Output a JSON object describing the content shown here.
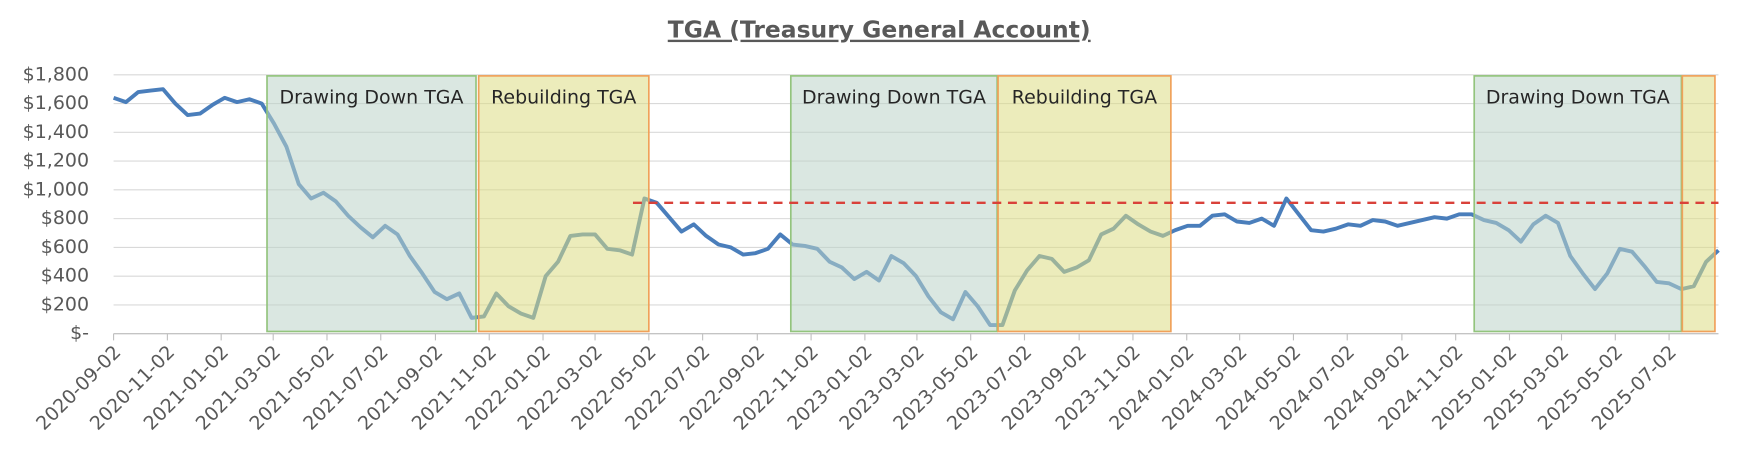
{
  "chart_data": {
    "type": "line",
    "title": "TGA (Treasury General Account)",
    "color": "#4a7ebb",
    "x": [
      "2020-09-02",
      "2020-09-16",
      "2020-09-30",
      "2020-10-14",
      "2020-10-28",
      "2020-11-11",
      "2020-11-25",
      "2020-12-09",
      "2020-12-23",
      "2021-01-06",
      "2021-01-20",
      "2021-02-03",
      "2021-02-17",
      "2021-03-03",
      "2021-03-17",
      "2021-03-31",
      "2021-04-14",
      "2021-04-28",
      "2021-05-12",
      "2021-05-26",
      "2021-06-09",
      "2021-06-23",
      "2021-07-07",
      "2021-07-21",
      "2021-08-04",
      "2021-08-18",
      "2021-09-01",
      "2021-09-15",
      "2021-09-29",
      "2021-10-13",
      "2021-10-27",
      "2021-11-10",
      "2021-11-24",
      "2021-12-08",
      "2021-12-22",
      "2022-01-05",
      "2022-01-19",
      "2022-02-02",
      "2022-02-16",
      "2022-03-02",
      "2022-03-16",
      "2022-03-30",
      "2022-04-13",
      "2022-04-27",
      "2022-05-11",
      "2022-05-25",
      "2022-06-08",
      "2022-06-22",
      "2022-07-06",
      "2022-07-20",
      "2022-08-03",
      "2022-08-17",
      "2022-08-31",
      "2022-09-14",
      "2022-09-28",
      "2022-10-12",
      "2022-10-26",
      "2022-11-09",
      "2022-11-23",
      "2022-12-07",
      "2022-12-21",
      "2023-01-04",
      "2023-01-18",
      "2023-02-01",
      "2023-02-15",
      "2023-03-01",
      "2023-03-15",
      "2023-03-29",
      "2023-04-12",
      "2023-04-26",
      "2023-05-10",
      "2023-05-24",
      "2023-06-07",
      "2023-06-21",
      "2023-07-05",
      "2023-07-19",
      "2023-08-02",
      "2023-08-16",
      "2023-08-30",
      "2023-09-13",
      "2023-09-27",
      "2023-10-11",
      "2023-10-25",
      "2023-11-08",
      "2023-11-22",
      "2023-12-06",
      "2023-12-20",
      "2024-01-03",
      "2024-01-17",
      "2024-01-31",
      "2024-02-14",
      "2024-02-28",
      "2024-03-13",
      "2024-03-27",
      "2024-04-10",
      "2024-04-24",
      "2024-05-08",
      "2024-05-22",
      "2024-06-05",
      "2024-06-19",
      "2024-07-03",
      "2024-07-17",
      "2024-07-31",
      "2024-08-14",
      "2024-08-28",
      "2024-09-11",
      "2024-09-25",
      "2024-10-09",
      "2024-10-23",
      "2024-11-06",
      "2024-11-20",
      "2024-12-04",
      "2024-12-18",
      "2025-01-01",
      "2025-01-15",
      "2025-01-29",
      "2025-02-12",
      "2025-02-26",
      "2025-03-12",
      "2025-03-26",
      "2025-04-09",
      "2025-04-23",
      "2025-05-07",
      "2025-05-21",
      "2025-06-04",
      "2025-06-18",
      "2025-07-02",
      "2025-07-16",
      "2025-07-30",
      "2025-08-13",
      "2025-08-27"
    ],
    "values": [
      1640,
      1610,
      1680,
      1690,
      1700,
      1600,
      1520,
      1530,
      1590,
      1640,
      1610,
      1630,
      1600,
      1460,
      1300,
      1040,
      940,
      980,
      920,
      820,
      740,
      670,
      750,
      690,
      540,
      420,
      290,
      240,
      280,
      110,
      120,
      280,
      190,
      140,
      110,
      400,
      500,
      680,
      690,
      690,
      590,
      580,
      550,
      940,
      910,
      810,
      710,
      760,
      680,
      620,
      600,
      550,
      560,
      590,
      690,
      620,
      610,
      590,
      500,
      460,
      380,
      430,
      370,
      540,
      490,
      400,
      260,
      150,
      100,
      290,
      190,
      60,
      60,
      300,
      440,
      540,
      520,
      430,
      460,
      510,
      690,
      730,
      820,
      760,
      710,
      680,
      720,
      750,
      750,
      820,
      830,
      780,
      770,
      800,
      750,
      940,
      830,
      720,
      710,
      730,
      760,
      750,
      790,
      780,
      750,
      770,
      790,
      810,
      800,
      830,
      830,
      790,
      770,
      720,
      640,
      760,
      820,
      770,
      540,
      420,
      310,
      420,
      590,
      570,
      470,
      360,
      350,
      310,
      330,
      500,
      580
    ],
    "xlim": [
      "2020-09-02",
      "2025-08-27"
    ],
    "xticks": [
      "2020-09-02",
      "2020-11-02",
      "2021-01-02",
      "2021-03-02",
      "2021-05-02",
      "2021-07-02",
      "2021-09-02",
      "2021-11-02",
      "2022-01-02",
      "2022-03-02",
      "2022-05-02",
      "2022-07-02",
      "2022-09-02",
      "2022-11-02",
      "2023-01-02",
      "2023-03-02",
      "2023-05-02",
      "2023-07-02",
      "2023-09-02",
      "2023-11-02",
      "2024-01-02",
      "2024-03-02",
      "2024-05-02",
      "2024-07-02",
      "2024-09-02",
      "2024-11-02",
      "2025-01-02",
      "2025-03-02",
      "2025-05-02",
      "2025-07-02"
    ],
    "ylim": [
      0,
      1800
    ],
    "yticks": [
      {
        "value": 0,
        "label": "$-"
      },
      {
        "value": 200,
        "label": "$200"
      },
      {
        "value": 400,
        "label": "$400"
      },
      {
        "value": 600,
        "label": "$600"
      },
      {
        "value": 800,
        "label": "$800"
      },
      {
        "value": 1000,
        "label": "$1,000"
      },
      {
        "value": 1200,
        "label": "$1,200"
      },
      {
        "value": 1400,
        "label": "$1,400"
      },
      {
        "value": 1600,
        "label": "$1,600"
      },
      {
        "value": 1800,
        "label": "$1,800"
      }
    ],
    "grid": true,
    "regions": [
      {
        "label": "Drawing Down TGA",
        "start": "2021-02-23",
        "end": "2021-10-18",
        "color": "#bcd3c8",
        "edge": "#93c47d"
      },
      {
        "label": "Rebuilding TGA",
        "start": "2021-10-21",
        "end": "2022-05-02",
        "color": "#dcdc84",
        "edge": "#f0a15a"
      },
      {
        "label": "Drawing Down TGA",
        "start": "2022-10-10",
        "end": "2023-06-01",
        "color": "#bcd3c8",
        "edge": "#93c47d"
      },
      {
        "label": "Rebuilding TGA",
        "start": "2023-06-02",
        "end": "2023-12-15",
        "color": "#dcdc84",
        "edge": "#f0a15a"
      },
      {
        "label": "Drawing Down TGA",
        "start": "2024-11-23",
        "end": "2025-07-16",
        "color": "#bcd3c8",
        "edge": "#93c47d"
      },
      {
        "label": null,
        "start": "2025-07-17",
        "end": "2025-08-23",
        "color": "#dcdc84",
        "edge": "#f0a15a"
      }
    ],
    "reference_line": {
      "value": 910,
      "start": "2022-04-14",
      "color": "#d9413a"
    }
  }
}
